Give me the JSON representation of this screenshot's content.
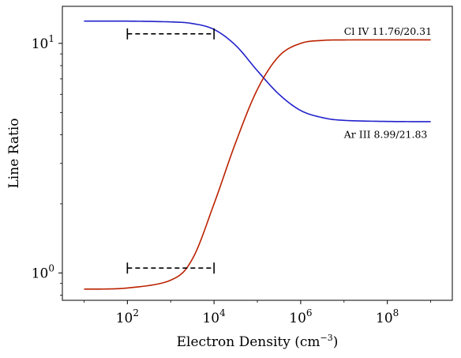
{
  "chart_data": {
    "type": "line",
    "xlabel": "Electron Density",
    "xlabel_unit": "(cm",
    "xlabel_unit_exp": "−3",
    "xlabel_unit_close": ")",
    "ylabel": "Line Ratio",
    "x_scale": "log",
    "y_scale": "log",
    "xlim": [
      3.16,
      3160000000.0
    ],
    "ylim": [
      0.76,
      14.5
    ],
    "x_ticks": [
      {
        "base": "10",
        "exp": "2",
        "value": 100
      },
      {
        "base": "10",
        "exp": "4",
        "value": 10000
      },
      {
        "base": "10",
        "exp": "6",
        "value": 1000000
      },
      {
        "base": "10",
        "exp": "8",
        "value": 100000000
      }
    ],
    "y_ticks": [
      {
        "base": "10",
        "exp": "0",
        "value": 1
      },
      {
        "base": "10",
        "exp": "1",
        "value": 10
      }
    ],
    "grid": false,
    "series": [
      {
        "color": "#2222cc",
        "x": [
          10,
          100,
          1000,
          3162,
          10000,
          31623,
          100000,
          316228,
          1000000,
          3162278,
          10000000,
          100000000,
          1000000000
        ],
        "y": [
          12.5,
          12.5,
          12.4,
          12.2,
          11.5,
          9.8,
          7.6,
          6.0,
          5.1,
          4.75,
          4.62,
          4.57,
          4.56
        ]
      },
      {
        "color": "#bb2200",
        "x": [
          10,
          100,
          1000,
          3162,
          10000,
          31623,
          100000,
          316228,
          1000000,
          3162278,
          10000000,
          100000000,
          1000000000
        ],
        "y": [
          0.85,
          0.86,
          0.93,
          1.15,
          2.0,
          3.7,
          6.3,
          8.8,
          10.0,
          10.3,
          10.35,
          10.36,
          10.36
        ]
      }
    ],
    "annotations": [
      {
        "text": "Cl IV 11.76/20.31",
        "x": 10000000.0,
        "y": 10.9
      },
      {
        "text": "Ar III 8.99/21.83",
        "x": 10000000.0,
        "y": 3.88
      }
    ],
    "error_bars": [
      {
        "x_range": [
          100,
          10000
        ],
        "y": 11.0
      },
      {
        "x_range": [
          100,
          10000
        ],
        "y": 1.05
      }
    ]
  }
}
